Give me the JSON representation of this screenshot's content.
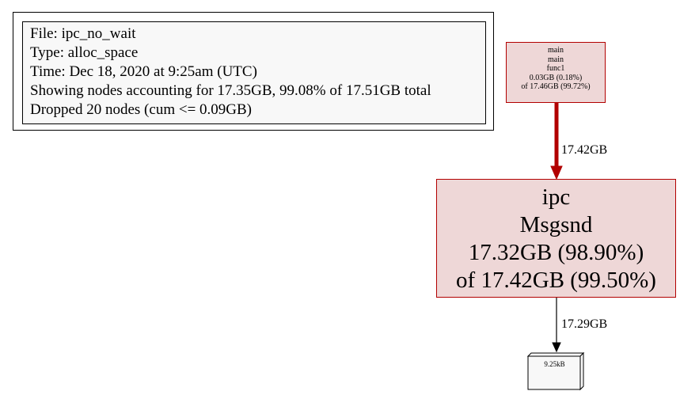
{
  "legend": {
    "file": "File: ipc_no_wait",
    "type": "Type: alloc_space",
    "time": "Time: Dec 18, 2020 at 9:25am (UTC)",
    "showing": "Showing nodes accounting for 17.35GB, 99.08% of 17.51GB total",
    "dropped": "Dropped 20 nodes (cum <= 0.09GB)"
  },
  "nodes": {
    "main_func1": {
      "lines": [
        "main",
        "main",
        "func1",
        "0.03GB (0.18%)",
        "of 17.46GB (99.72%)"
      ]
    },
    "ipc_msgsnd": {
      "lines": [
        "ipc",
        "Msgsnd",
        "17.32GB (98.90%)",
        "of 17.42GB (99.50%)"
      ]
    },
    "leaf": {
      "label": "9.25kB"
    }
  },
  "edges": {
    "main_to_msgsnd": {
      "label": "17.42GB",
      "color": "#b20000"
    },
    "msgsnd_to_leaf": {
      "label": "17.29GB",
      "color": "#000000"
    }
  },
  "colors": {
    "node_fill": "#eed7d7",
    "node_border": "#b20000",
    "leaf_fill": "#f8f8f8"
  }
}
